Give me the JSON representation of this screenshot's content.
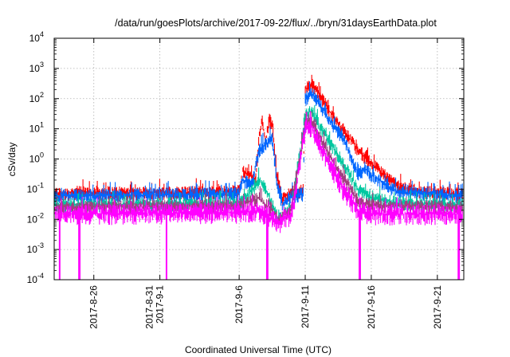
{
  "chart_data": {
    "type": "line",
    "title": "/data/run/goesPlots/archive/2017-09-22/flux/../bryn/31daysEarthData.plot",
    "xlabel": "Coordinated Universal Time (UTC)",
    "ylabel": "cSv/day",
    "yscale": "log",
    "ylim": [
      0.0001,
      10000
    ],
    "xlim": [
      "2017-08-23",
      "2017-09-23"
    ],
    "yticks": [
      {
        "base": "10",
        "exp": "-4"
      },
      {
        "base": "10",
        "exp": "-3"
      },
      {
        "base": "10",
        "exp": "-2"
      },
      {
        "base": "10",
        "exp": "-1"
      },
      {
        "base": "10",
        "exp": "0"
      },
      {
        "base": "10",
        "exp": "1"
      },
      {
        "base": "10",
        "exp": "2"
      },
      {
        "base": "10",
        "exp": "3"
      },
      {
        "base": "10",
        "exp": "4"
      }
    ],
    "xticks": [
      {
        "date": "2017-08-26",
        "label": "2017-8-26",
        "label2": ""
      },
      {
        "date": "2017-08-31",
        "label": "2017-8-31",
        "label2": "2017-9-1"
      },
      {
        "date": "2017-09-06",
        "label": "2017-9-6",
        "label2": ""
      },
      {
        "date": "2017-09-11",
        "label": "2017-9-11",
        "label2": ""
      },
      {
        "date": "2017-09-16",
        "label": "2017-9-16",
        "label2": ""
      },
      {
        "date": "2017-09-21",
        "label": "2017-9-21",
        "label2": ""
      }
    ],
    "grid": true,
    "series": [
      {
        "color": "#ff0000",
        "points": [
          [
            "2017-08-23",
            0.07
          ],
          [
            "2017-08-24T12:00",
            0.075
          ],
          [
            "2017-08-25",
            0.08
          ],
          [
            "2017-08-30",
            0.075
          ],
          [
            "2017-09-04",
            0.08
          ],
          [
            "2017-09-06",
            0.09
          ],
          [
            "2017-09-06T06:00",
            0.4
          ],
          [
            "2017-09-06T18:00",
            0.3
          ],
          [
            "2017-09-07T06:00",
            0.2
          ],
          [
            "2017-09-07T12:00",
            5
          ],
          [
            "2017-09-07T18:00",
            20
          ],
          [
            "2017-09-08",
            3
          ],
          [
            "2017-09-08T06:00",
            20
          ],
          [
            "2017-09-08T12:00",
            15
          ],
          [
            "2017-09-08T20:00",
            0.3
          ],
          [
            "2017-09-09T06:00",
            0.05
          ],
          [
            "2017-09-10",
            0.08
          ],
          [
            "2017-09-10T20:00",
            0.09
          ],
          [
            "2017-09-11",
            200
          ],
          [
            "2017-09-11T12:00",
            300
          ],
          [
            "2017-09-12",
            150
          ],
          [
            "2017-09-13",
            30
          ],
          [
            "2017-09-14",
            8
          ],
          [
            "2017-09-15",
            2
          ],
          [
            "2017-09-16",
            0.7
          ],
          [
            "2017-09-17",
            0.3
          ],
          [
            "2017-09-18",
            0.12
          ],
          [
            "2017-09-20",
            0.08
          ],
          [
            "2017-09-23",
            0.07
          ]
        ]
      },
      {
        "color": "#0066ff",
        "points": [
          [
            "2017-08-23",
            0.06
          ],
          [
            "2017-08-30",
            0.065
          ],
          [
            "2017-09-06",
            0.07
          ],
          [
            "2017-09-06T06:00",
            0.2
          ],
          [
            "2017-09-07",
            0.15
          ],
          [
            "2017-09-07T12:00",
            2
          ],
          [
            "2017-09-08",
            3
          ],
          [
            "2017-09-08T12:00",
            5
          ],
          [
            "2017-09-08T20:00",
            0.2
          ],
          [
            "2017-09-09T06:00",
            0.03
          ],
          [
            "2017-09-10",
            0.06
          ],
          [
            "2017-09-10T20:00",
            0.07
          ],
          [
            "2017-09-11",
            100
          ],
          [
            "2017-09-11T12:00",
            150
          ],
          [
            "2017-09-12",
            80
          ],
          [
            "2017-09-13",
            15
          ],
          [
            "2017-09-14",
            4
          ],
          [
            "2017-09-15",
            0.3
          ],
          [
            "2017-09-15T12:00",
            0.5
          ],
          [
            "2017-09-16",
            0.3
          ],
          [
            "2017-09-17",
            0.15
          ],
          [
            "2017-09-18",
            0.08
          ],
          [
            "2017-09-23",
            0.06
          ]
        ]
      },
      {
        "color": "#00c8a0",
        "points": [
          [
            "2017-08-23",
            0.03
          ],
          [
            "2017-09-06",
            0.035
          ],
          [
            "2017-09-06T12:00",
            0.05
          ],
          [
            "2017-09-07T12:00",
            0.2
          ],
          [
            "2017-09-08",
            0.1
          ],
          [
            "2017-09-08T12:00",
            0.03
          ],
          [
            "2017-09-09",
            0.01
          ],
          [
            "2017-09-10",
            0.03
          ],
          [
            "2017-09-11",
            30
          ],
          [
            "2017-09-11T12:00",
            40
          ],
          [
            "2017-09-12",
            15
          ],
          [
            "2017-09-13",
            3
          ],
          [
            "2017-09-14",
            0.6
          ],
          [
            "2017-09-15",
            0.1
          ],
          [
            "2017-09-16",
            0.05
          ],
          [
            "2017-09-18",
            0.035
          ],
          [
            "2017-09-23",
            0.03
          ]
        ]
      },
      {
        "color": "#a04080",
        "points": [
          [
            "2017-08-23",
            0.025
          ],
          [
            "2017-09-06",
            0.028
          ],
          [
            "2017-09-07T12:00",
            0.05
          ],
          [
            "2017-09-08T12:00",
            0.02
          ],
          [
            "2017-09-09",
            0.01
          ],
          [
            "2017-09-10",
            0.025
          ],
          [
            "2017-09-11",
            15
          ],
          [
            "2017-09-11T12:00",
            18
          ],
          [
            "2017-09-12",
            6
          ],
          [
            "2017-09-13",
            1
          ],
          [
            "2017-09-14",
            0.2
          ],
          [
            "2017-09-15",
            0.04
          ],
          [
            "2017-09-16",
            0.03
          ],
          [
            "2017-09-23",
            0.025
          ]
        ]
      },
      {
        "color": "#ff00ff",
        "points": [
          [
            "2017-08-23",
            0.015
          ],
          [
            "2017-09-06",
            0.017
          ],
          [
            "2017-09-07T12:00",
            0.02
          ],
          [
            "2017-09-08T12:00",
            0.01
          ],
          [
            "2017-09-09",
            0.008
          ],
          [
            "2017-09-10",
            0.015
          ],
          [
            "2017-09-11",
            10
          ],
          [
            "2017-09-11T12:00",
            12
          ],
          [
            "2017-09-12",
            4
          ],
          [
            "2017-09-13",
            0.5
          ],
          [
            "2017-09-14",
            0.08
          ],
          [
            "2017-09-15",
            0.02
          ],
          [
            "2017-09-16",
            0.015
          ],
          [
            "2017-09-23",
            0.015
          ]
        ]
      }
    ],
    "dropouts": [
      "2017-08-23T10:00",
      "2017-08-24T22:00",
      "2017-08-31T12:00",
      "2017-09-08T03:00",
      "2017-09-15T03:00",
      "2017-09-22T15:00"
    ]
  }
}
